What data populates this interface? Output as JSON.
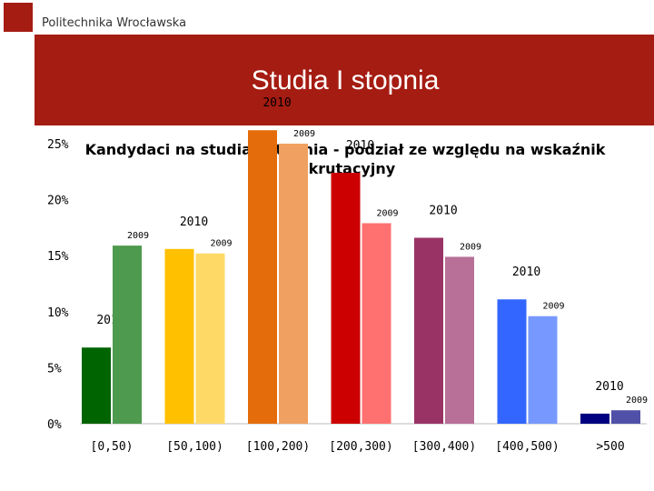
{
  "header": {
    "organization": "Politechnika Wrocławska"
  },
  "slide": {
    "title": "Studia I stopnia"
  },
  "chart_data": {
    "type": "bar",
    "title": "Kandydaci na studia I stopnia - podział ze względu na wskaźnik rekrutacyjny",
    "title_lines": [
      "Kandydaci na studia I stopnia - podział ze względu na wskaźnik",
      "rekrutacyjny"
    ],
    "categories": [
      "[0,50)",
      "[50,100)",
      "[100,200)",
      "[200,300)",
      "[300,400)",
      "[400,500)",
      ">500"
    ],
    "y_ticks": [
      "0%",
      "5%",
      "10%",
      "15%",
      "20%",
      "25%"
    ],
    "ylim": [
      0,
      25
    ],
    "grid": false,
    "series": [
      {
        "name": "2010",
        "values": [
          6.8,
          15.6,
          26.2,
          22.4,
          16.6,
          11.1,
          0.9
        ]
      },
      {
        "name": "2009",
        "values": [
          15.9,
          15.2,
          25.0,
          17.9,
          14.9,
          9.6,
          1.2
        ]
      }
    ],
    "bar_labels": [
      {
        "series": "2010",
        "labels": [
          "2010",
          "2010",
          "2010",
          "2010",
          "2010",
          "2010",
          "2010"
        ]
      },
      {
        "series": "2009",
        "labels": [
          "2009",
          "2009",
          "2009",
          "2009",
          "2009",
          "2009",
          "2009"
        ]
      }
    ],
    "colors": {
      "2010": [
        "#006400",
        "#ffc000",
        "#e46c0a",
        "#cc0000",
        "#993366",
        "#3366ff",
        "#000080"
      ],
      "2009": [
        "#4e9a4e",
        "#ffd966",
        "#f0a060",
        "#ff7070",
        "#b87098",
        "#7799ff",
        "#5050a8"
      ]
    }
  }
}
